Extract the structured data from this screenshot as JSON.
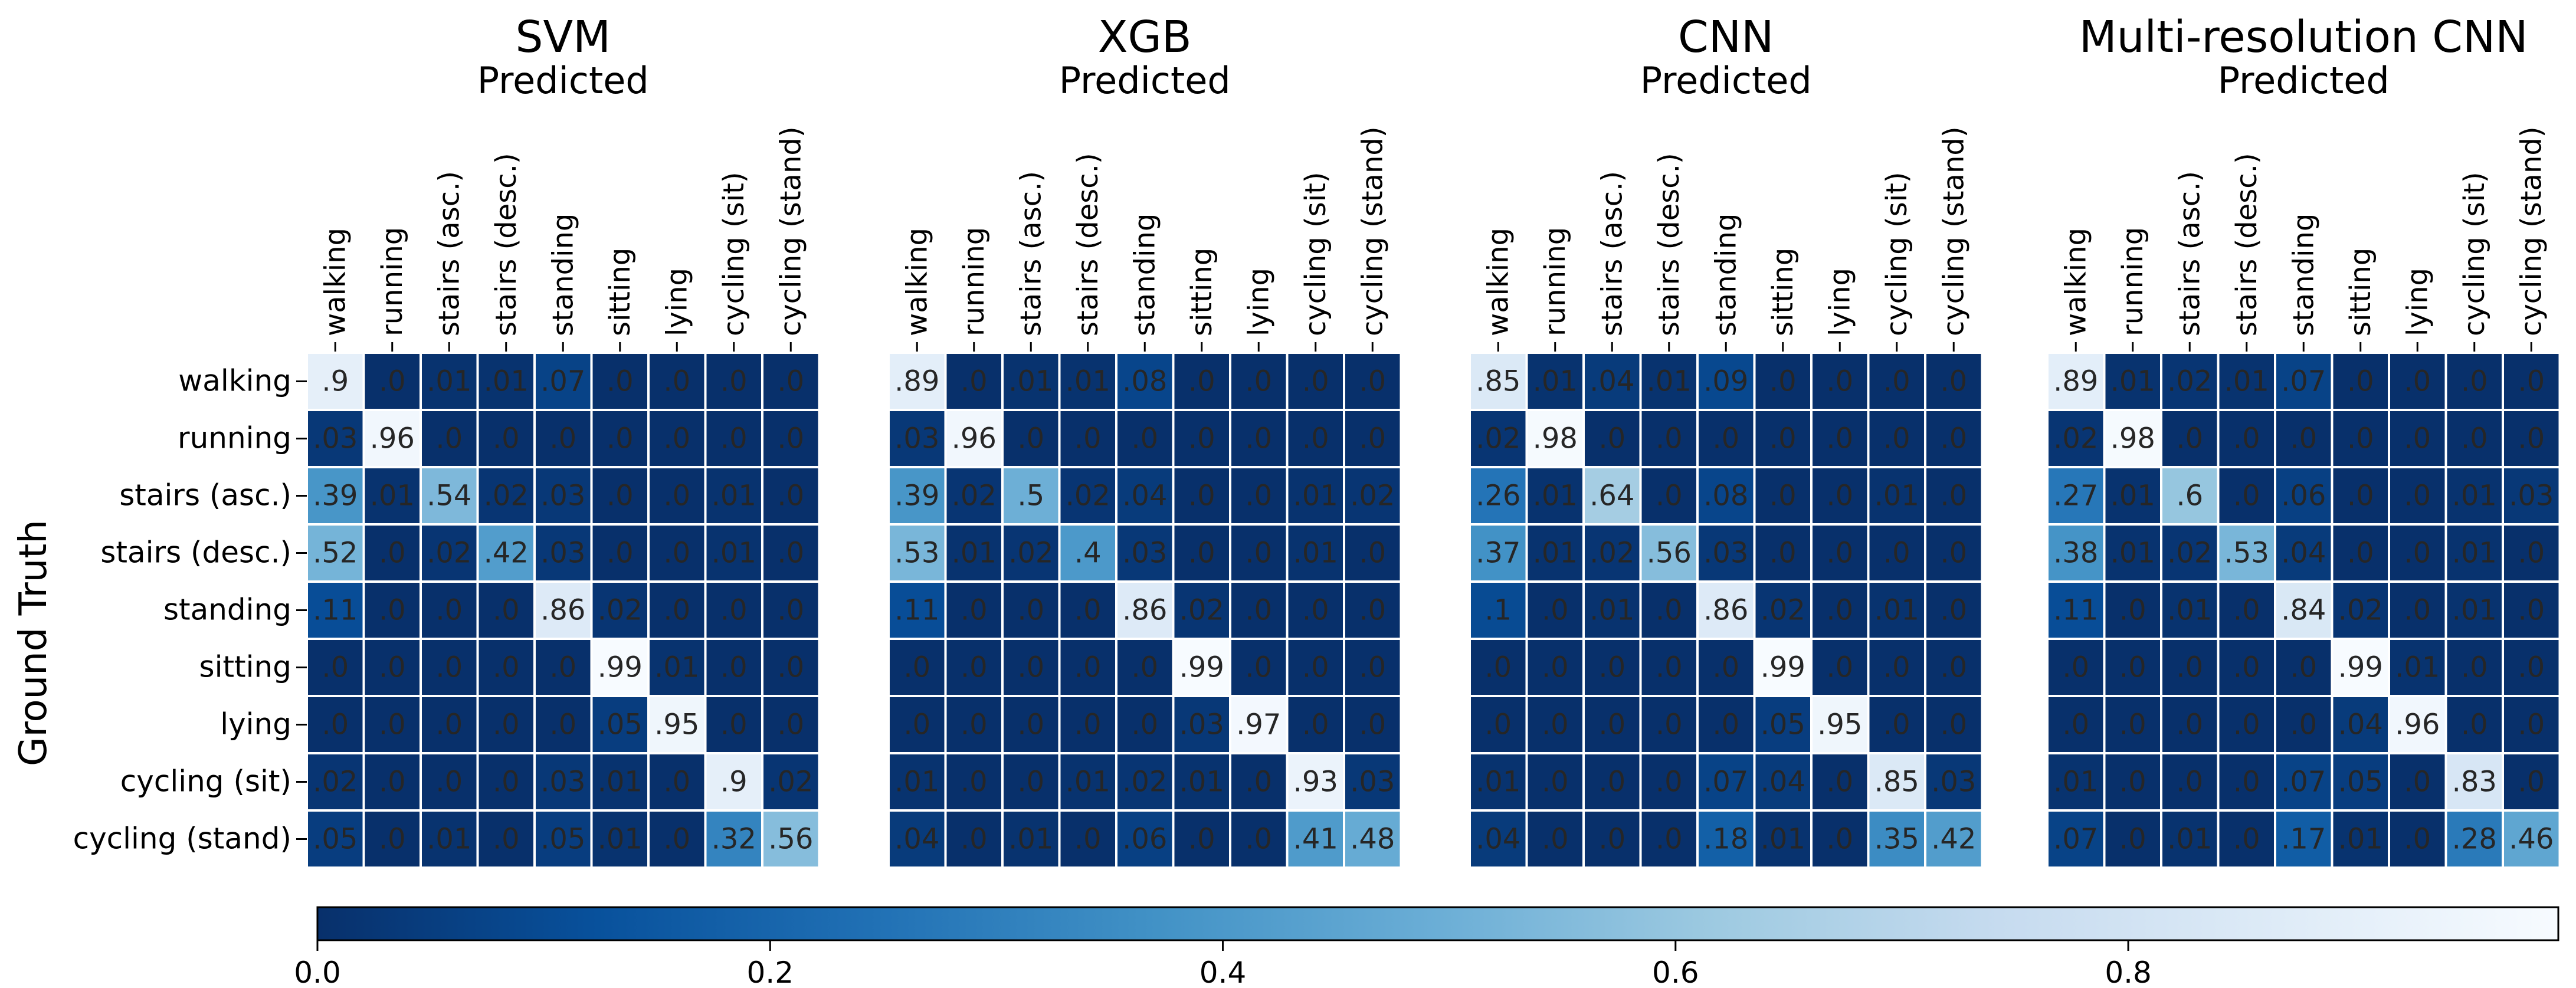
{
  "figure": {
    "y_title": "Ground Truth",
    "colorbar": {
      "ticks": [
        "0.0",
        "0.2",
        "0.4",
        "0.6",
        "0.8"
      ],
      "min": 0.0,
      "max": 0.99,
      "colormap": "Blues_r",
      "color_low": "#08306b",
      "color_high": "#f7fbff"
    }
  },
  "chart_data": [
    {
      "type": "heatmap",
      "title": "SVM",
      "subtitle": "Predicted",
      "ylabel": "Ground Truth",
      "row_labels": [
        "walking",
        "running",
        "stairs (asc.)",
        "stairs (desc.)",
        "standing",
        "sitting",
        "lying",
        "cycling (sit)",
        "cycling (stand)"
      ],
      "col_labels": [
        "walking",
        "running",
        "stairs (asc.)",
        "stairs (desc.)",
        "standing",
        "sitting",
        "lying",
        "cycling (sit)",
        "cycling (stand)"
      ],
      "cells": [
        [
          ".9",
          ".0",
          ".01",
          ".01",
          ".07",
          ".0",
          ".0",
          ".0",
          ".0"
        ],
        [
          ".03",
          ".96",
          ".0",
          ".0",
          ".0",
          ".0",
          ".0",
          ".0",
          ".0"
        ],
        [
          ".39",
          ".01",
          ".54",
          ".02",
          ".03",
          ".0",
          ".0",
          ".01",
          ".0"
        ],
        [
          ".52",
          ".0",
          ".02",
          ".42",
          ".03",
          ".0",
          ".0",
          ".01",
          ".0"
        ],
        [
          ".11",
          ".0",
          ".0",
          ".0",
          ".86",
          ".02",
          ".0",
          ".0",
          ".0"
        ],
        [
          ".0",
          ".0",
          ".0",
          ".0",
          ".0",
          ".99",
          ".01",
          ".0",
          ".0"
        ],
        [
          ".0",
          ".0",
          ".0",
          ".0",
          ".0",
          ".05",
          ".95",
          ".0",
          ".0"
        ],
        [
          ".02",
          ".0",
          ".0",
          ".0",
          ".03",
          ".01",
          ".0",
          ".9",
          ".02"
        ],
        [
          ".05",
          ".0",
          ".01",
          ".0",
          ".05",
          ".01",
          ".0",
          ".32",
          ".56"
        ]
      ]
    },
    {
      "type": "heatmap",
      "title": "XGB",
      "subtitle": "Predicted",
      "col_labels": [
        "walking",
        "running",
        "stairs (asc.)",
        "stairs (desc.)",
        "standing",
        "sitting",
        "lying",
        "cycling (sit)",
        "cycling (stand)"
      ],
      "cells": [
        [
          ".89",
          ".0",
          ".01",
          ".01",
          ".08",
          ".0",
          ".0",
          ".0",
          ".0"
        ],
        [
          ".03",
          ".96",
          ".0",
          ".0",
          ".0",
          ".0",
          ".0",
          ".0",
          ".0"
        ],
        [
          ".39",
          ".02",
          ".5",
          ".02",
          ".04",
          ".0",
          ".0",
          ".01",
          ".02"
        ],
        [
          ".53",
          ".01",
          ".02",
          ".4",
          ".03",
          ".0",
          ".0",
          ".01",
          ".0"
        ],
        [
          ".11",
          ".0",
          ".0",
          ".0",
          ".86",
          ".02",
          ".0",
          ".0",
          ".0"
        ],
        [
          ".0",
          ".0",
          ".0",
          ".0",
          ".0",
          ".99",
          ".0",
          ".0",
          ".0"
        ],
        [
          ".0",
          ".0",
          ".0",
          ".0",
          ".0",
          ".03",
          ".97",
          ".0",
          ".0"
        ],
        [
          ".01",
          ".0",
          ".0",
          ".01",
          ".02",
          ".01",
          ".0",
          ".93",
          ".03"
        ],
        [
          ".04",
          ".0",
          ".01",
          ".0",
          ".06",
          ".0",
          ".0",
          ".41",
          ".48"
        ]
      ]
    },
    {
      "type": "heatmap",
      "title": "CNN",
      "subtitle": "Predicted",
      "col_labels": [
        "walking",
        "running",
        "stairs (asc.)",
        "stairs (desc.)",
        "standing",
        "sitting",
        "lying",
        "cycling (sit)",
        "cycling (stand)"
      ],
      "cells": [
        [
          ".85",
          ".01",
          ".04",
          ".01",
          ".09",
          ".0",
          ".0",
          ".0",
          ".0"
        ],
        [
          ".02",
          ".98",
          ".0",
          ".0",
          ".0",
          ".0",
          ".0",
          ".0",
          ".0"
        ],
        [
          ".26",
          ".01",
          ".64",
          ".0",
          ".08",
          ".0",
          ".0",
          ".01",
          ".0"
        ],
        [
          ".37",
          ".01",
          ".02",
          ".56",
          ".03",
          ".0",
          ".0",
          ".0",
          ".0"
        ],
        [
          ".1",
          ".0",
          ".01",
          ".0",
          ".86",
          ".02",
          ".0",
          ".01",
          ".0"
        ],
        [
          ".0",
          ".0",
          ".0",
          ".0",
          ".0",
          ".99",
          ".0",
          ".0",
          ".0"
        ],
        [
          ".0",
          ".0",
          ".0",
          ".0",
          ".0",
          ".05",
          ".95",
          ".0",
          ".0"
        ],
        [
          ".01",
          ".0",
          ".0",
          ".0",
          ".07",
          ".04",
          ".0",
          ".85",
          ".03"
        ],
        [
          ".04",
          ".0",
          ".0",
          ".0",
          ".18",
          ".01",
          ".0",
          ".35",
          ".42"
        ]
      ]
    },
    {
      "type": "heatmap",
      "title": "Multi-resolution CNN",
      "subtitle": "Predicted",
      "col_labels": [
        "walking",
        "running",
        "stairs (asc.)",
        "stairs (desc.)",
        "standing",
        "sitting",
        "lying",
        "cycling (sit)",
        "cycling (stand)"
      ],
      "cells": [
        [
          ".89",
          ".01",
          ".02",
          ".01",
          ".07",
          ".0",
          ".0",
          ".0",
          ".0"
        ],
        [
          ".02",
          ".98",
          ".0",
          ".0",
          ".0",
          ".0",
          ".0",
          ".0",
          ".0"
        ],
        [
          ".27",
          ".01",
          ".6",
          ".0",
          ".06",
          ".0",
          ".0",
          ".01",
          ".03"
        ],
        [
          ".38",
          ".01",
          ".02",
          ".53",
          ".04",
          ".0",
          ".0",
          ".01",
          ".0"
        ],
        [
          ".11",
          ".0",
          ".01",
          ".0",
          ".84",
          ".02",
          ".0",
          ".01",
          ".0"
        ],
        [
          ".0",
          ".0",
          ".0",
          ".0",
          ".0",
          ".99",
          ".01",
          ".0",
          ".0"
        ],
        [
          ".0",
          ".0",
          ".0",
          ".0",
          ".0",
          ".04",
          ".96",
          ".0",
          ".0"
        ],
        [
          ".01",
          ".0",
          ".0",
          ".0",
          ".07",
          ".05",
          ".0",
          ".83",
          ".0"
        ],
        [
          ".07",
          ".0",
          ".01",
          ".0",
          ".17",
          ".01",
          ".0",
          ".28",
          ".46"
        ]
      ]
    }
  ]
}
